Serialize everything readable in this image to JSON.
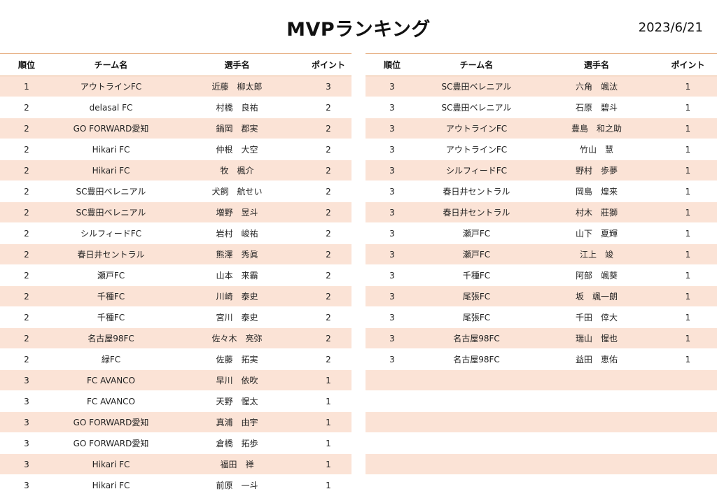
{
  "title": "MVPランキング",
  "date": "2023/6/21",
  "headers": {
    "rank": "順位",
    "team": "チーム名",
    "player": "選手名",
    "points": "ポイント"
  },
  "left_rows": [
    {
      "rank": "1",
      "team": "アウトラインFC",
      "player": "近藤　柳太郎",
      "points": "3"
    },
    {
      "rank": "2",
      "team": "delasal FC",
      "player": "村橋　良祐",
      "points": "2"
    },
    {
      "rank": "2",
      "team": "GO FORWARD愛知",
      "player": "鍋岡　郡実",
      "points": "2"
    },
    {
      "rank": "2",
      "team": "Hikari FC",
      "player": "仲根　大空",
      "points": "2"
    },
    {
      "rank": "2",
      "team": "Hikari FC",
      "player": "牧　楓介",
      "points": "2"
    },
    {
      "rank": "2",
      "team": "SC豊田ベレニアル",
      "player": "犬飼　航せい",
      "points": "2"
    },
    {
      "rank": "2",
      "team": "SC豊田ベレニアル",
      "player": "増野　昱斗",
      "points": "2"
    },
    {
      "rank": "2",
      "team": "シルフィードFC",
      "player": "岩村　峻祐",
      "points": "2"
    },
    {
      "rank": "2",
      "team": "春日井セントラル",
      "player": "熊澤　秀眞",
      "points": "2"
    },
    {
      "rank": "2",
      "team": "瀬戸FC",
      "player": "山本　来霸",
      "points": "2"
    },
    {
      "rank": "2",
      "team": "千種FC",
      "player": "川崎　泰史",
      "points": "2"
    },
    {
      "rank": "2",
      "team": "千種FC",
      "player": "宮川　泰史",
      "points": "2"
    },
    {
      "rank": "2",
      "team": "名古屋98FC",
      "player": "佐々木　亮弥",
      "points": "2"
    },
    {
      "rank": "2",
      "team": "緑FC",
      "player": "佐藤　拓実",
      "points": "2"
    },
    {
      "rank": "3",
      "team": "FC AVANCO",
      "player": "早川　依吹",
      "points": "1"
    },
    {
      "rank": "3",
      "team": "FC AVANCO",
      "player": "天野　惺太",
      "points": "1"
    },
    {
      "rank": "3",
      "team": "GO FORWARD愛知",
      "player": "真浦　由宇",
      "points": "1"
    },
    {
      "rank": "3",
      "team": "GO FORWARD愛知",
      "player": "倉橋　拓歩",
      "points": "1"
    },
    {
      "rank": "3",
      "team": "Hikari FC",
      "player": "福田　禅",
      "points": "1"
    },
    {
      "rank": "3",
      "team": "Hikari FC",
      "player": "前原　一斗",
      "points": "1"
    }
  ],
  "right_rows": [
    {
      "rank": "3",
      "team": "SC豊田ベレニアル",
      "player": "六角　颯汰",
      "points": "1"
    },
    {
      "rank": "3",
      "team": "SC豊田ベレニアル",
      "player": "石原　碧斗",
      "points": "1"
    },
    {
      "rank": "3",
      "team": "アウトラインFC",
      "player": "豊島　和之助",
      "points": "1"
    },
    {
      "rank": "3",
      "team": "アウトラインFC",
      "player": "竹山　慧",
      "points": "1"
    },
    {
      "rank": "3",
      "team": "シルフィードFC",
      "player": "野村　歩夢",
      "points": "1"
    },
    {
      "rank": "3",
      "team": "春日井セントラル",
      "player": "岡島　煌来",
      "points": "1"
    },
    {
      "rank": "3",
      "team": "春日井セントラル",
      "player": "村木　莊獅",
      "points": "1"
    },
    {
      "rank": "3",
      "team": "瀬戸FC",
      "player": "山下　夏輝",
      "points": "1"
    },
    {
      "rank": "3",
      "team": "瀬戸FC",
      "player": "江上　竣",
      "points": "1"
    },
    {
      "rank": "3",
      "team": "千種FC",
      "player": "阿部　颯葵",
      "points": "1"
    },
    {
      "rank": "3",
      "team": "尾張FC",
      "player": "坂　颯一朗",
      "points": "1"
    },
    {
      "rank": "3",
      "team": "尾張FC",
      "player": "千田　倖大",
      "points": "1"
    },
    {
      "rank": "3",
      "team": "名古屋98FC",
      "player": "瑞山　惺也",
      "points": "1"
    },
    {
      "rank": "3",
      "team": "名古屋98FC",
      "player": "益田　恵佑",
      "points": "1"
    },
    {
      "rank": "",
      "team": "",
      "player": "",
      "points": ""
    },
    {
      "rank": "",
      "team": "",
      "player": "",
      "points": ""
    },
    {
      "rank": "",
      "team": "",
      "player": "",
      "points": ""
    },
    {
      "rank": "",
      "team": "",
      "player": "",
      "points": ""
    },
    {
      "rank": "",
      "team": "",
      "player": "",
      "points": ""
    },
    {
      "rank": "",
      "team": "",
      "player": "",
      "points": ""
    }
  ]
}
